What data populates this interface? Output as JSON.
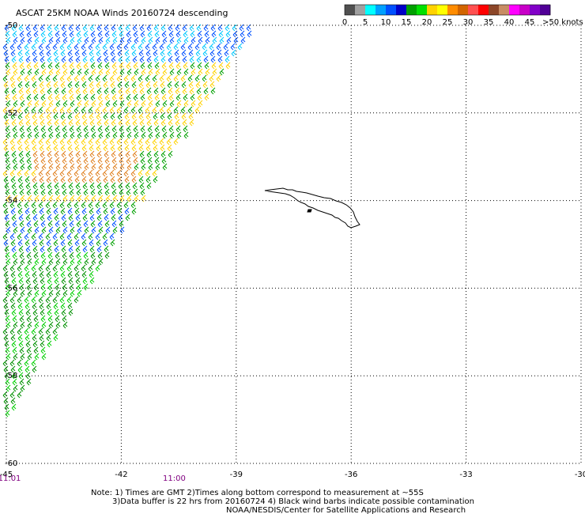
{
  "title": "ASCAT 25KM NOAA Winds 20160724 descending",
  "legend": {
    "unit_label": ">50 knots",
    "tick_labels": [
      "0",
      "5",
      "10",
      "15",
      "20",
      "25",
      "30",
      "35",
      "40",
      "45"
    ],
    "colors": [
      "#505050",
      "#a0a0a0",
      "#00ffff",
      "#00a0ff",
      "#0050ff",
      "#0000c8",
      "#00a000",
      "#00e000",
      "#ffd200",
      "#ffff00",
      "#ff8c00",
      "#d26400",
      "#ff5050",
      "#ff0000",
      "#8c4628",
      "#c88c64",
      "#ff00ff",
      "#c800c8",
      "#8200c8",
      "#500096"
    ]
  },
  "axes": {
    "lon_labels": [
      "-45",
      "-42",
      "-39",
      "-36",
      "-33",
      "-30"
    ],
    "lat_labels": [
      "-50",
      "-52",
      "-54",
      "-56",
      "-58",
      "-60"
    ],
    "lon_range": [
      -45,
      -30
    ],
    "lat_range": [
      -50,
      -60
    ]
  },
  "times": [
    {
      "label": "11:01",
      "lon": -45
    },
    {
      "label": "11:00",
      "lon": -40.7
    }
  ],
  "notes": [
    "Note: 1) Times are GMT 2)Times along bottom correspond to measurement at ~55S",
    "3)Data buffer is 22 hrs from 20160724 4) Black wind barbs indicate possible contamination",
    "NOAA/NESDIS/Center for Satellite Applications and Research"
  ],
  "map_features": {
    "island": "South Georgia",
    "wind_swath": "ASCAT wind barbs along western edge"
  }
}
